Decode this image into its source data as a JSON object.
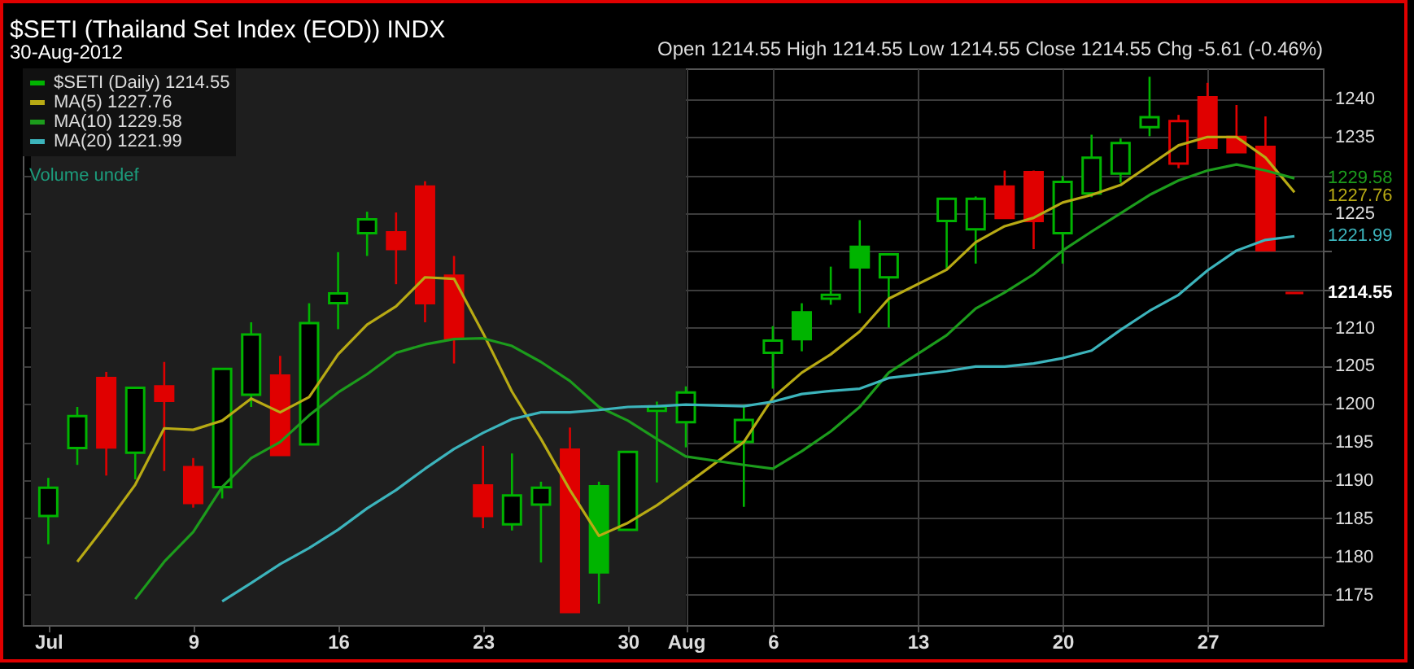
{
  "chart_data": {
    "type": "candlestick",
    "title": "$SETI (Thailand Set Index (EOD)) INDX",
    "subtitle": "30-Aug-2012",
    "annotations": [
      "Open 1214.55  High 1214.55  Low 1214.55  Close 1214.55  Chg -5.61 (-0.46%)",
      "Volume undef"
    ],
    "categories": [
      "Jul",
      null,
      null,
      null,
      null,
      "9",
      null,
      null,
      null,
      null,
      "16",
      null,
      null,
      null,
      null,
      "23",
      null,
      null,
      null,
      null,
      "30",
      null,
      "Aug",
      null,
      null,
      "6",
      null,
      null,
      null,
      null,
      "13",
      null,
      null,
      null,
      null,
      "20",
      null,
      null,
      null,
      null,
      "27",
      null,
      null,
      null
    ],
    "ylim": [
      1171,
      1244
    ],
    "yticks": [
      1175,
      1180,
      1185,
      1190,
      1195,
      1200,
      1205,
      1210,
      {
        "value": 1215,
        "label": null
      },
      {
        "value": 1220,
        "label": null
      },
      1225,
      {
        "value": 1230,
        "label": null
      },
      1235,
      1240
    ],
    "grid": true,
    "legend": "top left",
    "bands": [
      {
        "axis": "x",
        "from": "Jul",
        "to": "Aug",
        "color": "#1e1e1e"
      }
    ],
    "series": [
      {
        "name": "$SETI (Daily) 1214.55",
        "value_labels": [
          null,
          null,
          null,
          null,
          null,
          null,
          null,
          null,
          null,
          null,
          null,
          null,
          null,
          null,
          null,
          null,
          null,
          null,
          null,
          null,
          null,
          null,
          null,
          null,
          null,
          null,
          null,
          null,
          null,
          null,
          null,
          null,
          null,
          null,
          null,
          null,
          null,
          null,
          null,
          null,
          null,
          null,
          null,
          "1214.55"
        ],
        "ohlc": [
          [
            1185.3,
            1190.3,
            1181.6,
            1189.0
          ],
          [
            1194.2,
            1199.6,
            1192.0,
            1198.4
          ],
          [
            1203.4,
            1204.2,
            1190.6,
            1194.3
          ],
          [
            1193.6,
            1202.1,
            1190.1,
            1202.1
          ],
          [
            1202.3,
            1205.5,
            1191.2,
            1200.4
          ],
          [
            1191.7,
            1192.9,
            1186.4,
            1187.0
          ],
          [
            1189.1,
            1204.6,
            1187.6,
            1204.6
          ],
          [
            1201.2,
            1210.7,
            1199.6,
            1209.1
          ],
          [
            1203.7,
            1206.3,
            1193.3,
            1193.3
          ],
          [
            1194.7,
            1213.2,
            1194.7,
            1210.6
          ],
          [
            1213.2,
            1219.9,
            1209.8,
            1214.5
          ],
          [
            1222.4,
            1225.2,
            1219.4,
            1224.2
          ],
          [
            1222.5,
            1225.1,
            1215.7,
            1220.3
          ],
          [
            1228.5,
            1229.2,
            1210.7,
            1213.2
          ],
          [
            1216.8,
            1219.4,
            1205.3,
            1208.6
          ],
          [
            1189.3,
            1194.5,
            1183.7,
            1185.3
          ],
          [
            1184.2,
            1193.5,
            1183.4,
            1188.0
          ],
          [
            1186.8,
            1189.8,
            1179.2,
            1189.0
          ],
          [
            1194.0,
            1196.9,
            1172.7,
            1172.7
          ],
          [
            1189.2,
            1189.8,
            1173.8,
            1177.9
          ],
          [
            1183.5,
            1193.7,
            1183.5,
            1193.7
          ],
          [
            1199.1,
            1200.3,
            1189.7,
            1199.6
          ],
          [
            1197.6,
            1202.3,
            1194.3,
            1201.5
          ],
          null,
          [
            1195.0,
            1199.9,
            1186.5,
            1197.9
          ],
          [
            1206.7,
            1210.2,
            1202.0,
            1208.3
          ],
          [
            1212.0,
            1213.2,
            1206.9,
            1208.5
          ],
          [
            1213.8,
            1218.0,
            1213.0,
            1214.3
          ],
          [
            1220.6,
            1224.1,
            1211.9,
            1217.9
          ],
          [
            1216.6,
            1219.6,
            1210.0,
            1219.6
          ],
          null,
          [
            1224.0,
            1226.9,
            1217.7,
            1226.9
          ],
          [
            1222.9,
            1227.2,
            1218.4,
            1226.9
          ],
          [
            1228.5,
            1230.6,
            1224.4,
            1224.4
          ],
          [
            1230.4,
            1230.6,
            1220.3,
            1224.0
          ],
          [
            1222.4,
            1229.9,
            1218.4,
            1229.1
          ],
          [
            1227.6,
            1235.3,
            1227.1,
            1232.3
          ],
          [
            1230.2,
            1234.8,
            1229.0,
            1234.2
          ],
          [
            1236.3,
            1242.9,
            1235.1,
            1237.6
          ],
          [
            1231.5,
            1237.9,
            1230.9,
            1237.1
          ],
          [
            1240.2,
            1242.1,
            1233.6,
            1233.6
          ],
          [
            1235.0,
            1239.2,
            1232.9,
            1233.0
          ],
          [
            1233.7,
            1237.7,
            1220.16,
            1220.16
          ],
          [
            1214.55,
            1214.55,
            1214.55,
            1214.55
          ]
        ],
        "colors": [
          "#00b400",
          "#00b400",
          "#e00000",
          "#00b400",
          "#e00000",
          "#e00000",
          "#00b400",
          "#00b400",
          "#e00000",
          "#00b400",
          "#00b400",
          "#00b400",
          "#e00000",
          "#e00000",
          "#e00000",
          "#e00000",
          "#00b400",
          "#00b400",
          "#e00000",
          "#00b400",
          "#00b400",
          "#00b400",
          "#00b400",
          null,
          "#00b400",
          "#00b400",
          "#00b400",
          "#00b400",
          "#00b400",
          "#00b400",
          null,
          "#00b400",
          "#00b400",
          "#e00000",
          "#e00000",
          "#00b400",
          "#00b400",
          "#00b400",
          "#00b400",
          "#e00000",
          "#e00000",
          "#e00000",
          "#e00000",
          "#e00000"
        ]
      },
      {
        "name": "MA(5) 1227.76",
        "type": "line",
        "color": "#b8aa14",
        "values": [
          null,
          1179.3,
          1184.2,
          1189.4,
          1196.8,
          1196.6,
          1197.8,
          1200.7,
          1198.9,
          1200.9,
          1206.5,
          1210.4,
          1212.8,
          1216.6,
          1216.4,
          1209.3,
          1201.6,
          1195.4,
          1188.7,
          1182.7,
          1184.4,
          1186.7,
          1189.4,
          null,
          1195.0,
          1200.8,
          1204.1,
          1206.5,
          1209.5,
          1213.8,
          null,
          1217.6,
          1221.2,
          1223.3,
          1224.4,
          1226.4,
          1227.4,
          1228.7,
          1231.3,
          1233.9,
          1235.0,
          1235.0,
          1232.3,
          1227.76
        ],
        "value_labels": [
          null,
          null,
          null,
          null,
          null,
          null,
          null,
          null,
          null,
          null,
          null,
          null,
          null,
          null,
          null,
          null,
          null,
          null,
          null,
          null,
          null,
          null,
          null,
          null,
          null,
          null,
          null,
          null,
          null,
          null,
          null,
          null,
          null,
          null,
          null,
          null,
          null,
          null,
          null,
          null,
          null,
          null,
          null,
          "1227.76"
        ]
      },
      {
        "name": "MA(10) 1229.58",
        "type": "line",
        "color": "#1c9c1c",
        "values": [
          null,
          null,
          null,
          1174.4,
          1179.3,
          1183.2,
          1189.1,
          1192.9,
          1195.0,
          1198.5,
          1201.5,
          1203.9,
          1206.7,
          1207.8,
          1208.5,
          1208.6,
          1207.6,
          1205.5,
          1203.0,
          1199.6,
          1197.8,
          1195.4,
          1193.1,
          null,
          1192.0,
          1191.5,
          1193.8,
          1196.4,
          1199.6,
          1204.1,
          null,
          1209.0,
          1212.5,
          1214.6,
          1217.0,
          1220.1,
          1222.6,
          1225.0,
          1227.4,
          1229.3,
          1230.6,
          1231.4,
          1230.6,
          1229.58
        ],
        "value_labels": [
          null,
          null,
          null,
          null,
          null,
          null,
          null,
          null,
          null,
          null,
          null,
          null,
          null,
          null,
          null,
          null,
          null,
          null,
          null,
          null,
          null,
          null,
          null,
          null,
          null,
          null,
          null,
          null,
          null,
          null,
          null,
          null,
          null,
          null,
          null,
          null,
          null,
          null,
          null,
          null,
          null,
          null,
          null,
          "1229.58"
        ]
      },
      {
        "name": "MA(20) 1221.99",
        "type": "line",
        "color": "#3cb4bc",
        "values": [
          null,
          null,
          null,
          null,
          null,
          null,
          1174.1,
          1176.5,
          1179.0,
          1181.1,
          1183.5,
          1186.3,
          1188.7,
          1191.5,
          1194.1,
          1196.2,
          1198.0,
          1198.9,
          1198.9,
          1199.2,
          1199.6,
          1199.7,
          1199.9,
          null,
          1199.7,
          1200.3,
          1201.3,
          1201.7,
          1202.0,
          1203.4,
          null,
          1204.3,
          1204.9,
          1204.9,
          1205.3,
          1206.0,
          1207.0,
          1209.7,
          1212.2,
          1214.3,
          1217.5,
          1220.1,
          1221.5,
          1221.99
        ],
        "value_labels": [
          null,
          null,
          null,
          null,
          null,
          null,
          null,
          null,
          null,
          null,
          null,
          null,
          null,
          null,
          null,
          null,
          null,
          null,
          null,
          null,
          null,
          null,
          null,
          null,
          null,
          null,
          null,
          null,
          null,
          null,
          null,
          null,
          null,
          null,
          null,
          null,
          null,
          null,
          null,
          null,
          null,
          null,
          null,
          "1221.99"
        ]
      }
    ]
  }
}
